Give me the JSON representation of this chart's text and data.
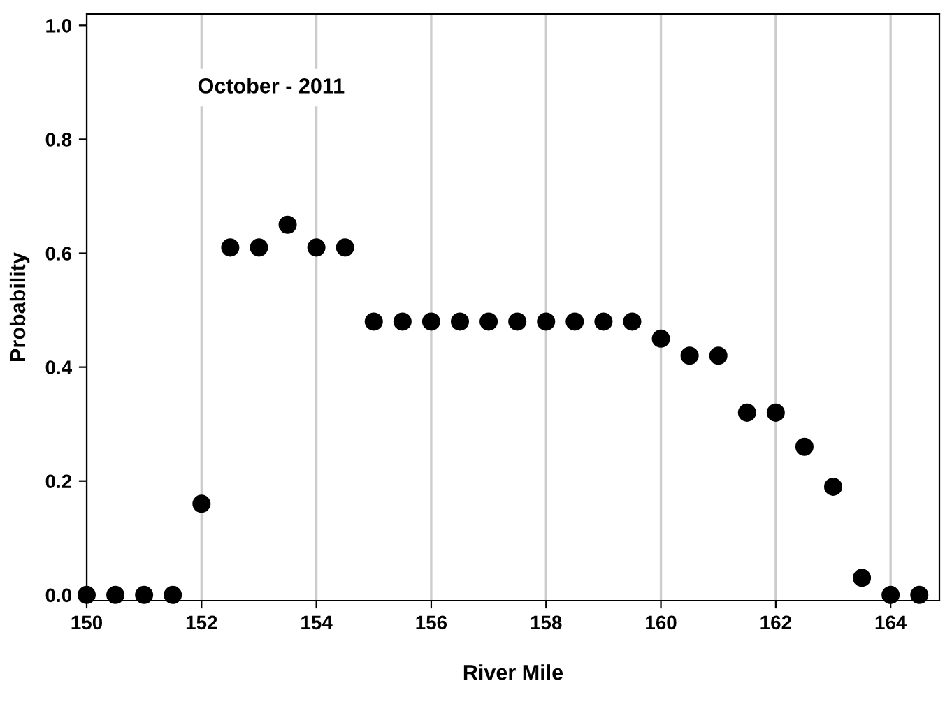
{
  "chart_data": {
    "type": "scatter",
    "xlabel": "River Mile",
    "ylabel": "Probability",
    "annotations": [
      "October - 2011"
    ],
    "x": [
      150,
      150.5,
      151,
      151.5,
      152,
      152.5,
      153,
      153.5,
      154,
      154.5,
      155,
      155.5,
      156,
      156.5,
      157,
      157.5,
      158,
      158.5,
      159,
      159.5,
      160,
      160.5,
      161,
      161.5,
      162,
      162.5,
      163,
      163.5,
      164,
      164.5
    ],
    "series": [
      {
        "color": "#000000",
        "values": [
          0,
          0,
          0,
          0,
          0.16,
          0.61,
          0.61,
          0.65,
          0.61,
          0.61,
          0.48,
          0.48,
          0.48,
          0.48,
          0.48,
          0.48,
          0.48,
          0.48,
          0.48,
          0.48,
          0.45,
          0.42,
          0.42,
          0.32,
          0.32,
          0.26,
          0.19,
          0.03,
          0,
          0
        ]
      }
    ],
    "xlim": [
      150,
      164.85
    ],
    "ylim": [
      -0.01,
      1.02
    ],
    "xticks": [
      150,
      152,
      154,
      156,
      158,
      160,
      162,
      164
    ],
    "yticks": [
      {
        "value": 0,
        "label": "0.0"
      },
      {
        "value": 0.2,
        "label": "0.2"
      },
      {
        "value": 0.4,
        "label": "0.4"
      },
      {
        "value": 0.6,
        "label": "0.6"
      },
      {
        "value": 0.8,
        "label": "0.8"
      },
      {
        "value": 1.0,
        "label": "1.0"
      }
    ],
    "grid": "x",
    "marker": "circle"
  }
}
